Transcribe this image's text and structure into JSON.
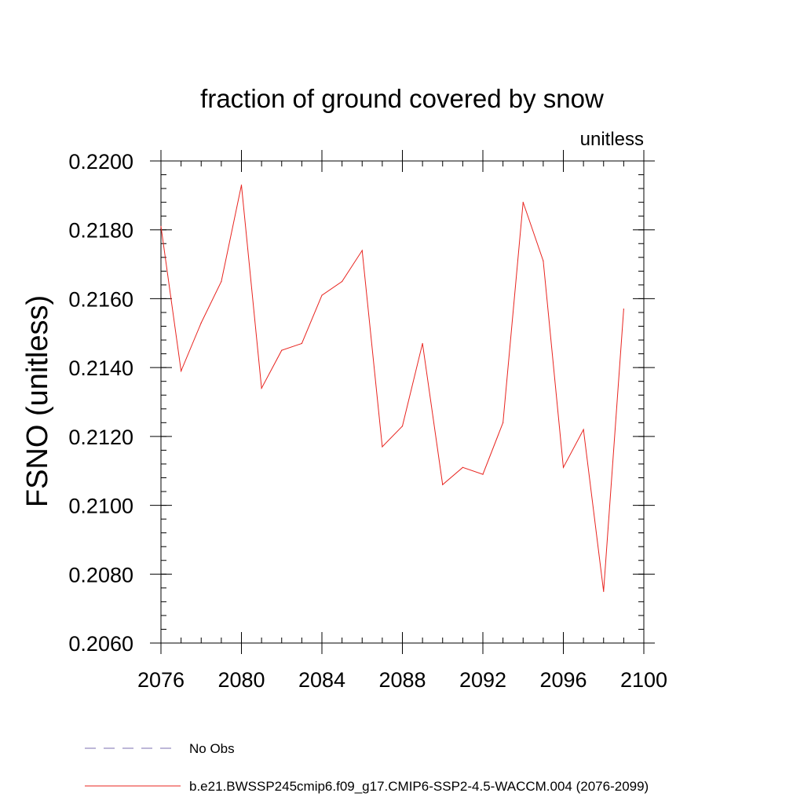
{
  "chart_data": {
    "type": "line",
    "title": "fraction of ground covered by snow",
    "units_label": "unitless",
    "ylabel": "FSNO  (unitless)",
    "xlabel": "",
    "xlim": [
      2076,
      2100
    ],
    "ylim": [
      0.206,
      0.22
    ],
    "x_major_ticks": [
      2076,
      2080,
      2084,
      2088,
      2092,
      2096,
      2100
    ],
    "x_tick_labels": [
      "2076",
      "2080",
      "2084",
      "2088",
      "2092",
      "2096",
      "2100"
    ],
    "x_minor_step": 1,
    "y_major_ticks": [
      0.206,
      0.208,
      0.21,
      0.212,
      0.214,
      0.216,
      0.218,
      0.22
    ],
    "y_tick_labels": [
      "0.2060",
      "0.2080",
      "0.2100",
      "0.2120",
      "0.2140",
      "0.2160",
      "0.2180",
      "0.2200"
    ],
    "y_minor_step": 0.0004,
    "grid": false,
    "legend_position": "bottom",
    "legend": [
      {
        "label": "No Obs",
        "color": "#7b6fb0",
        "dash": "dashed"
      },
      {
        "label": "b.e21.BWSSP245cmip6.f09_g17.CMIP6-SSP2-4.5-WACCM.004 (2076-2099)",
        "color": "#e8241f",
        "dash": "solid"
      }
    ],
    "series": [
      {
        "name": "b.e21.BWSSP245cmip6.f09_g17.CMIP6-SSP2-4.5-WACCM.004 (2076-2099)",
        "color": "#e8241f",
        "x": [
          2076,
          2077,
          2078,
          2079,
          2080,
          2081,
          2082,
          2083,
          2084,
          2085,
          2086,
          2087,
          2088,
          2089,
          2090,
          2091,
          2092,
          2093,
          2094,
          2095,
          2096,
          2097,
          2098,
          2099
        ],
        "values": [
          0.2181,
          0.2139,
          0.2153,
          0.2165,
          0.2193,
          0.2134,
          0.2145,
          0.2147,
          0.2161,
          0.2165,
          0.2174,
          0.2117,
          0.2123,
          0.2147,
          0.2106,
          0.2111,
          0.2109,
          0.2124,
          0.2188,
          0.2171,
          0.2111,
          0.2122,
          0.2075,
          0.2157
        ]
      }
    ]
  }
}
